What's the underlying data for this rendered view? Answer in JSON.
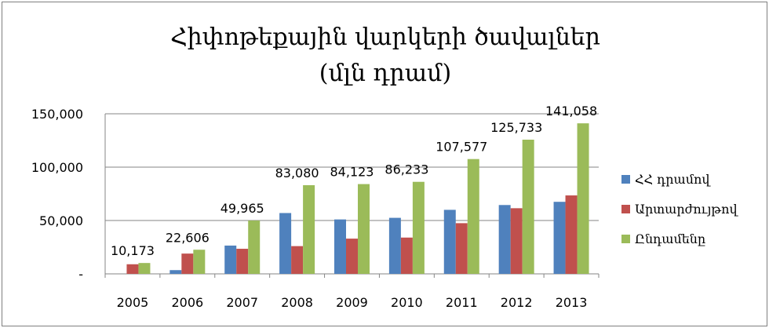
{
  "chart_data": {
    "type": "bar",
    "title_line1": "Հիփոթեքային վարկերի ծավալներ",
    "title_line2": "(մլն դրամ)",
    "categories": [
      "2005",
      "2006",
      "2007",
      "2008",
      "2009",
      "2010",
      "2011",
      "2012",
      "2013"
    ],
    "series": [
      {
        "name": "ՀՀ դրամով",
        "color": "#4f81bd",
        "values": [
          0,
          3500,
          26500,
          57000,
          51000,
          52500,
          60000,
          64500,
          67500
        ]
      },
      {
        "name": "Արտարժույթով",
        "color": "#c0504d",
        "values": [
          9000,
          19000,
          23500,
          26000,
          33000,
          34000,
          47500,
          61500,
          73500
        ]
      },
      {
        "name": "Ընդամենը",
        "color": "#9bbb59",
        "values": [
          10173,
          22606,
          49965,
          83080,
          84123,
          86233,
          107577,
          125733,
          141058
        ]
      }
    ],
    "data_labels": [
      "10,173",
      "22,606",
      "49,965",
      "83,080",
      "84,123",
      "86,233",
      "107,577",
      "125,733",
      "141,058"
    ],
    "y_ticks": [
      {
        "value": 0,
        "label": "-"
      },
      {
        "value": 50000,
        "label": "50,000"
      },
      {
        "value": 100000,
        "label": "100,000"
      },
      {
        "value": 150000,
        "label": "150,000"
      }
    ],
    "ylim": [
      0,
      150000
    ],
    "grid": true,
    "legend_position": "right"
  }
}
